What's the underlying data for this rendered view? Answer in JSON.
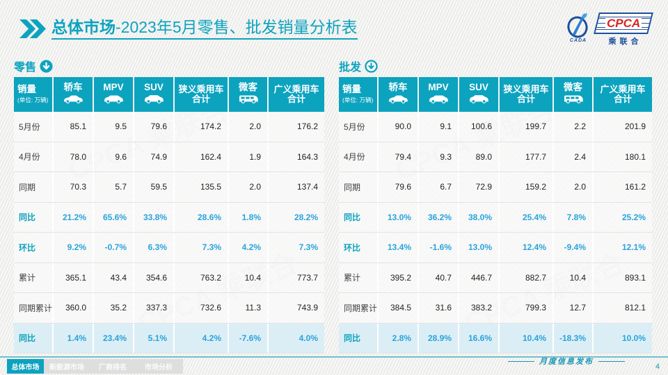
{
  "page": {
    "title_bold": "总体市场",
    "title_rest": "-2023年5月零售、批发销量分析表"
  },
  "logo": {
    "emblem_icon": "cpca-emblem-icon",
    "emblem_text": "CADA",
    "cpca": "CPCA",
    "sub_cn": "乘联合"
  },
  "table_header": {
    "sales_label": "销量",
    "sales_unit": "(单位: 万辆)",
    "columns": [
      {
        "label": "轿车",
        "icon": "sedan-icon"
      },
      {
        "label": "MPV",
        "icon": "mpv-icon"
      },
      {
        "label": "SUV",
        "icon": "suv-icon"
      },
      {
        "line1": "狭义乘用车",
        "line2": "合计"
      },
      {
        "label": "微客",
        "icon": "minibus-icon"
      },
      {
        "line1": "广义乘用车",
        "line2": "合计"
      }
    ]
  },
  "tables": [
    {
      "id": "retail",
      "label": "零售",
      "arrow_icon": "arrow-down-circle-filled-icon",
      "rows": [
        {
          "label": "5月份",
          "values": [
            "85.1",
            "9.5",
            "79.6",
            "174.2",
            "2.0",
            "176.2"
          ],
          "style": "normal"
        },
        {
          "label": "4月份",
          "values": [
            "78.0",
            "9.6",
            "74.9",
            "162.4",
            "1.9",
            "164.3"
          ],
          "style": "normal"
        },
        {
          "label": "同期",
          "values": [
            "70.3",
            "5.7",
            "59.5",
            "135.5",
            "2.0",
            "137.4"
          ],
          "style": "normal"
        },
        {
          "label": "同比",
          "values": [
            "21.2%",
            "65.6%",
            "33.8%",
            "28.6%",
            "1.8%",
            "28.2%"
          ],
          "style": "percent"
        },
        {
          "label": "环比",
          "values": [
            "9.2%",
            "-0.7%",
            "6.3%",
            "7.3%",
            "4.2%",
            "7.3%"
          ],
          "style": "percent"
        },
        {
          "label": "累计",
          "values": [
            "365.1",
            "43.4",
            "354.6",
            "763.2",
            "10.4",
            "773.7"
          ],
          "style": "normal"
        },
        {
          "label": "同期累计",
          "values": [
            "360.0",
            "35.2",
            "337.3",
            "732.6",
            "11.3",
            "743.9"
          ],
          "style": "normal"
        },
        {
          "label": "同比",
          "values": [
            "1.4%",
            "23.4%",
            "5.1%",
            "4.2%",
            "-7.6%",
            "4.0%"
          ],
          "style": "percent-highlight"
        }
      ]
    },
    {
      "id": "wholesale",
      "label": "批发",
      "arrow_icon": "arrow-down-circle-outline-icon",
      "rows": [
        {
          "label": "5月份",
          "values": [
            "90.0",
            "9.1",
            "100.6",
            "199.7",
            "2.2",
            "201.9"
          ],
          "style": "normal"
        },
        {
          "label": "4月份",
          "values": [
            "79.4",
            "9.3",
            "89.0",
            "177.7",
            "2.4",
            "180.1"
          ],
          "style": "normal"
        },
        {
          "label": "同期",
          "values": [
            "79.6",
            "6.7",
            "72.9",
            "159.2",
            "2.0",
            "161.2"
          ],
          "style": "normal"
        },
        {
          "label": "同比",
          "values": [
            "13.0%",
            "36.2%",
            "38.0%",
            "25.4%",
            "7.8%",
            "25.2%"
          ],
          "style": "percent"
        },
        {
          "label": "环比",
          "values": [
            "13.4%",
            "-1.6%",
            "13.0%",
            "12.4%",
            "-9.4%",
            "12.1%"
          ],
          "style": "percent"
        },
        {
          "label": "累计",
          "values": [
            "395.2",
            "40.7",
            "446.7",
            "882.7",
            "10.4",
            "893.1"
          ],
          "style": "normal"
        },
        {
          "label": "同期累计",
          "values": [
            "384.5",
            "31.6",
            "383.2",
            "799.3",
            "12.7",
            "812.1"
          ],
          "style": "normal"
        },
        {
          "label": "同比",
          "values": [
            "2.8%",
            "28.9%",
            "16.6%",
            "10.4%",
            "-18.3%",
            "10.0%"
          ],
          "style": "percent-highlight"
        }
      ]
    }
  ],
  "footer": {
    "tabs": [
      {
        "label": "总体市场",
        "active": true
      },
      {
        "label": "新能源市场",
        "active": false
      },
      {
        "label": "厂商排名",
        "active": false
      },
      {
        "label": "市场分析",
        "active": false
      }
    ],
    "note": "月度信息发布",
    "page_number": "4"
  },
  "watermark_text": "CPCA 乘联合",
  "colors": {
    "teal": "#0ca3bf",
    "percent_blue": "#29a3dc",
    "highlight_row_bg": "#dceef5",
    "logo_navy": "#1c4f9c",
    "logo_red": "#d8251f"
  }
}
